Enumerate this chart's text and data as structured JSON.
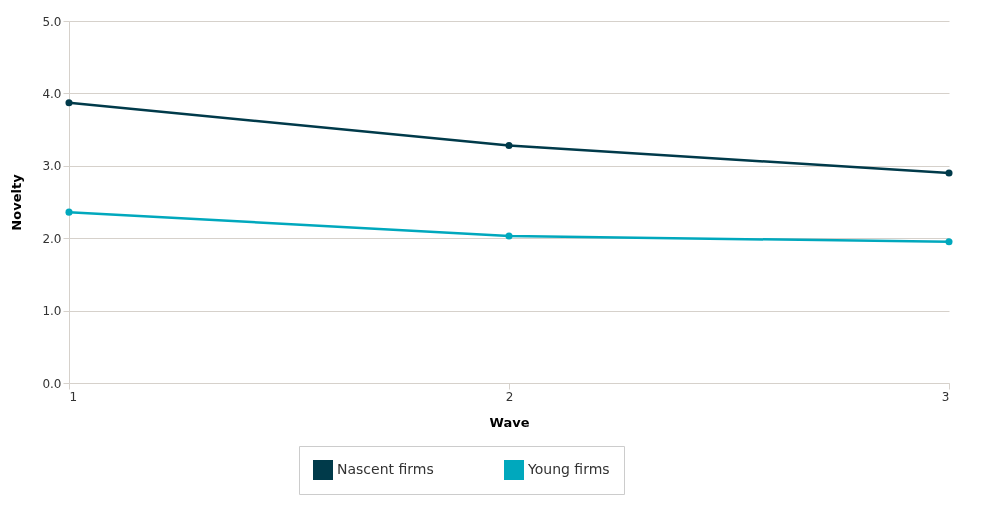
{
  "chart_data": {
    "type": "line",
    "xlabel": "Wave",
    "ylabel": "Novelty",
    "x": [
      1,
      2,
      3
    ],
    "xlim": [
      1,
      3
    ],
    "xticks": [
      1,
      2,
      3
    ],
    "ylim": [
      0,
      5
    ],
    "yticks": [
      {
        "value": 0,
        "label": "0.0"
      },
      {
        "value": 1,
        "label": "1.0"
      },
      {
        "value": 2,
        "label": "2.0"
      },
      {
        "value": 3,
        "label": "3.0"
      },
      {
        "value": 4,
        "label": "4.0"
      },
      {
        "value": 5,
        "label": "5.0"
      }
    ],
    "grid": "y",
    "legend": "bottom",
    "marker": "circle",
    "line_style": "solid",
    "series": [
      {
        "name": "Nascent firms",
        "color": "#003a4a",
        "values": [
          3.87,
          3.28,
          2.9
        ]
      },
      {
        "name": "Young firms",
        "color": "#00a8bd",
        "values": [
          2.36,
          2.03,
          1.95
        ]
      }
    ]
  }
}
